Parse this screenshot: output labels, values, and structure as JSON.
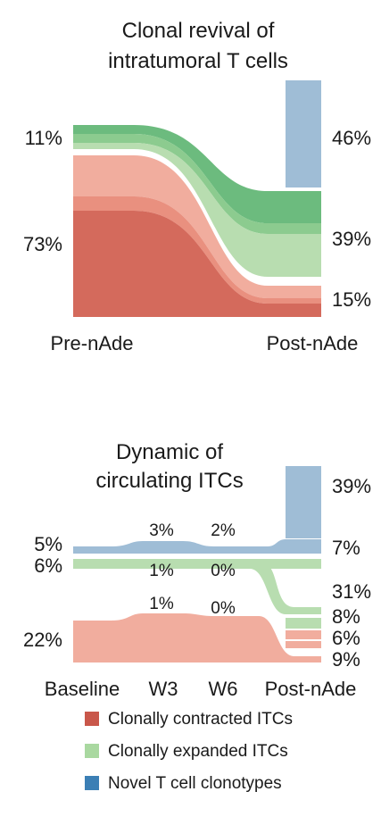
{
  "chart_data": [
    {
      "type": "area",
      "title_lines": [
        "Clonal revival of",
        "intratumoral T cells"
      ],
      "categories": [
        "Pre-nAde",
        "Post-nAde"
      ],
      "series": [
        {
          "name": "Clonally contracted ITCs",
          "labels": [
            "73%",
            "15%"
          ],
          "values": [
            73,
            15
          ]
        },
        {
          "name": "Clonally expanded ITCs",
          "labels": [
            "11%",
            "39%"
          ],
          "values": [
            11,
            39
          ]
        },
        {
          "name": "Novel T cell clonotypes",
          "labels": [
            "",
            "46%"
          ],
          "values": [
            0,
            46
          ]
        }
      ]
    },
    {
      "type": "area",
      "title_lines": [
        "Dynamic of",
        "circulating ITCs"
      ],
      "categories": [
        "Baseline",
        "W3",
        "W6",
        "Post-nAde"
      ],
      "left_labels": [
        "5%",
        "6%",
        "22%"
      ],
      "mid_labels": {
        "W3": [
          "3%",
          "1%",
          "1%"
        ],
        "W6": [
          "2%",
          "0%",
          "0%"
        ]
      },
      "right_labels": [
        "39%",
        "7%",
        "31%",
        "8%",
        "6%",
        "9%"
      ],
      "series": [
        {
          "name": "Novel T cell clonotypes",
          "values_left": [
            5
          ],
          "values_W3": [
            3
          ],
          "values_W6": [
            2
          ],
          "values_right": [
            39,
            7
          ]
        },
        {
          "name": "Clonally expanded ITCs",
          "values_left": [
            6
          ],
          "values_W3": [
            1
          ],
          "values_W6": [
            0
          ],
          "values_right": [
            31,
            8
          ]
        },
        {
          "name": "Clonally contracted ITCs",
          "values_left": [
            22
          ],
          "values_W3": [
            1
          ],
          "values_W6": [
            0
          ],
          "values_right": [
            6,
            9
          ]
        }
      ]
    }
  ],
  "legend": [
    {
      "label": "Clonally contracted ITCs",
      "color": "#c9574a"
    },
    {
      "label": "Clonally expanded ITCs",
      "color": "#a9d8a0"
    },
    {
      "label": "Novel T cell clonotypes",
      "color": "#3b7fb5"
    }
  ],
  "colors": {
    "red_dark": "#d46a5c",
    "red_mid": "#e9907f",
    "red_light": "#f1ad9e",
    "green_dark": "#6cbb7e",
    "green_mid": "#8ccb8f",
    "green_light": "#b8ddb0",
    "blue_light": "#9fbdd6",
    "blue_dark": "#3b7fb5"
  }
}
